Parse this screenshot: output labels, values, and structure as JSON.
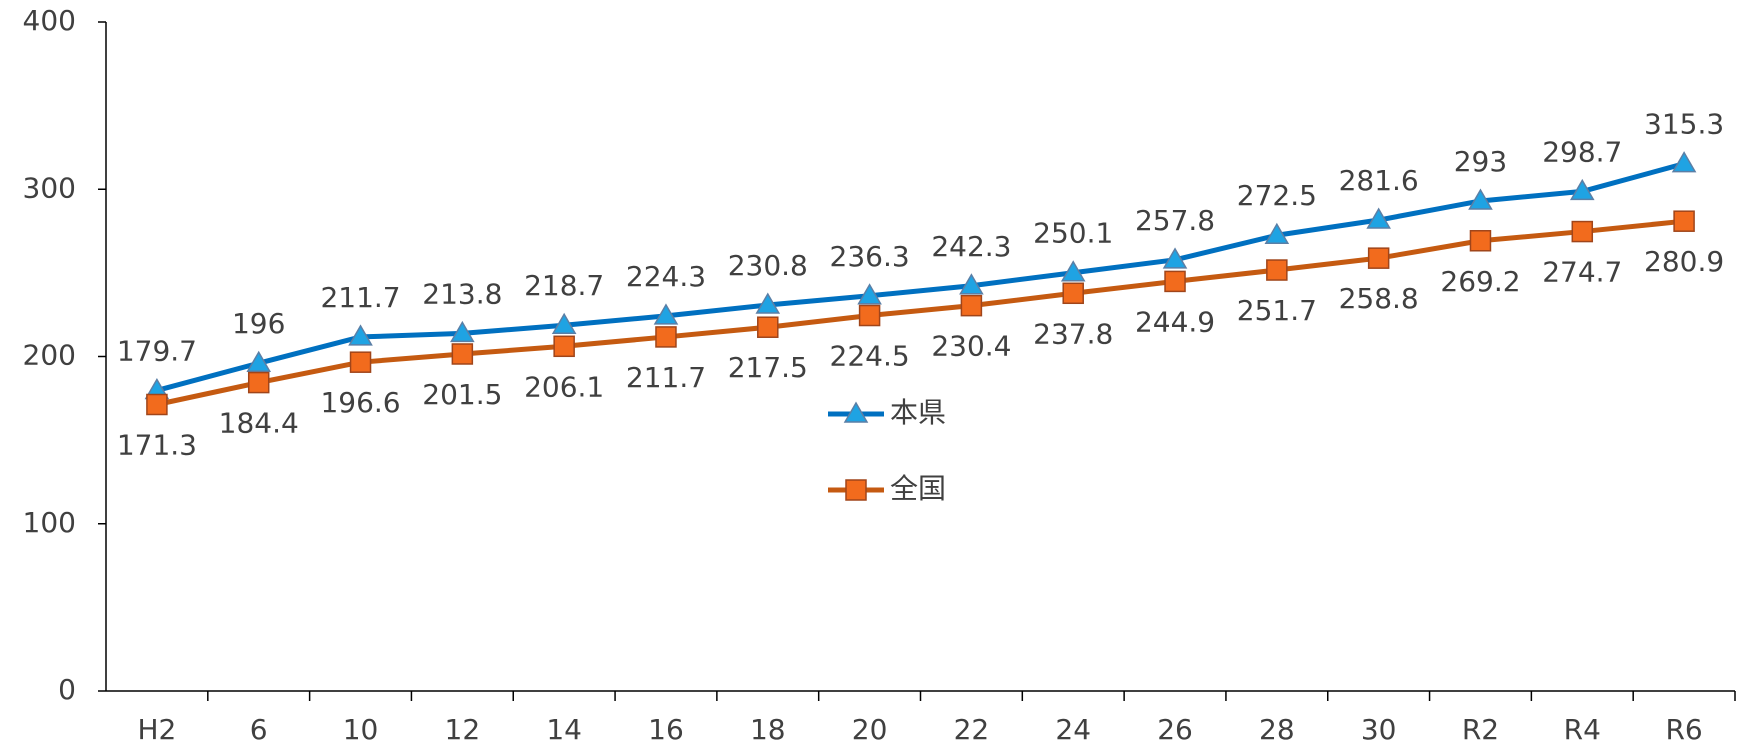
{
  "chart_data": {
    "type": "line",
    "categories": [
      "H2",
      "6",
      "10",
      "12",
      "14",
      "16",
      "18",
      "20",
      "22",
      "24",
      "26",
      "28",
      "30",
      "R2",
      "R4",
      "R6"
    ],
    "series": [
      {
        "name": "本県",
        "color": "#0070c0",
        "marker_color": "#1fa3e3",
        "marker": "triangle",
        "values": [
          179.7,
          196,
          211.7,
          213.8,
          218.7,
          224.3,
          230.8,
          236.3,
          242.3,
          250.1,
          257.8,
          272.5,
          281.6,
          293,
          298.7,
          315.3
        ]
      },
      {
        "name": "全国",
        "color": "#c55a11",
        "marker_color": "#f26b1d",
        "marker": "square",
        "values": [
          171.3,
          184.4,
          196.6,
          201.5,
          206.1,
          211.7,
          217.5,
          224.5,
          230.4,
          237.8,
          244.9,
          251.7,
          258.8,
          269.2,
          274.7,
          280.9
        ]
      }
    ],
    "ylim": [
      0,
      400
    ],
    "yticks": [
      0,
      100,
      200,
      300,
      400
    ],
    "grid": false
  }
}
